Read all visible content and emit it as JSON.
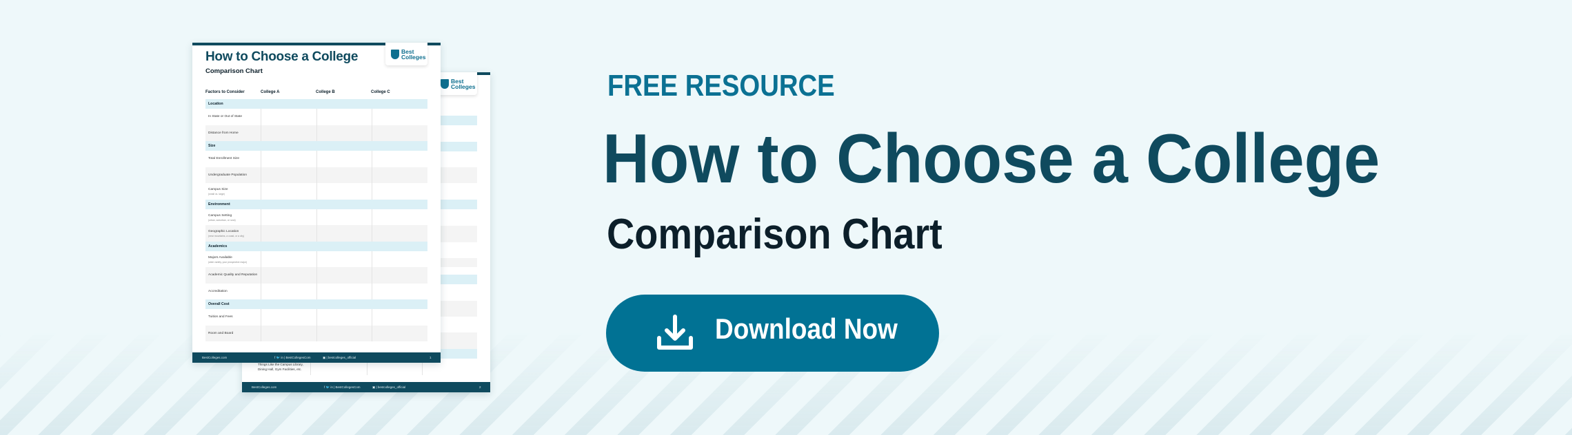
{
  "colors": {
    "background": "#eef8fa",
    "accent": "#017294",
    "title": "#0f4a5e",
    "band": "#dbf0f6"
  },
  "hero": {
    "eyebrow": "FREE RESOURCE",
    "title": "How to Choose a College",
    "subtitle": "Comparison Chart",
    "button_label": "Download Now",
    "button_icon": "download-icon"
  },
  "doc": {
    "logo": "Best Colleges",
    "title": "How to Choose a College",
    "subtitle": "Comparison Chart",
    "headers": [
      "Factors to Consider",
      "College A",
      "College B",
      "College C"
    ],
    "rows": [
      {
        "type": "section",
        "label": "Location"
      },
      {
        "type": "item",
        "label": "In State or Out of State"
      },
      {
        "type": "item",
        "label": "Distance from Home"
      },
      {
        "type": "section",
        "label": "Size"
      },
      {
        "type": "item",
        "label": "Total Enrollment Size"
      },
      {
        "type": "item",
        "label": "Undergraduate Population"
      },
      {
        "type": "item",
        "label": "Campus Size",
        "note": "(small vs. large)"
      },
      {
        "type": "section",
        "label": "Environment"
      },
      {
        "type": "item",
        "label": "Campus Setting",
        "note": "(urban, suburban, or rural)"
      },
      {
        "type": "item",
        "label": "Geographic Location",
        "note": "(near mountains, a coast, or a city)"
      },
      {
        "type": "section",
        "label": "Academics"
      },
      {
        "type": "item",
        "label": "Majors Available",
        "note": "(wide variety, your prospective major)"
      },
      {
        "type": "item",
        "label": "Academic Quality and Reputation"
      },
      {
        "type": "item",
        "label": "Accreditation"
      },
      {
        "type": "section",
        "label": "Overall Cost"
      },
      {
        "type": "item",
        "label": "Tuition and Fees"
      },
      {
        "type": "item",
        "label": "Room and Board"
      }
    ],
    "footer": {
      "site": "BestColleges.com",
      "social": "f  🐦  in  |  BestCollegesCom",
      "instagram": "▣ | bestcolleges_official",
      "page": "1"
    },
    "back_page": {
      "row_text": "Things Like the Campus Library, Dining Hall, Gym Facilities, etc.",
      "page": "2"
    }
  }
}
